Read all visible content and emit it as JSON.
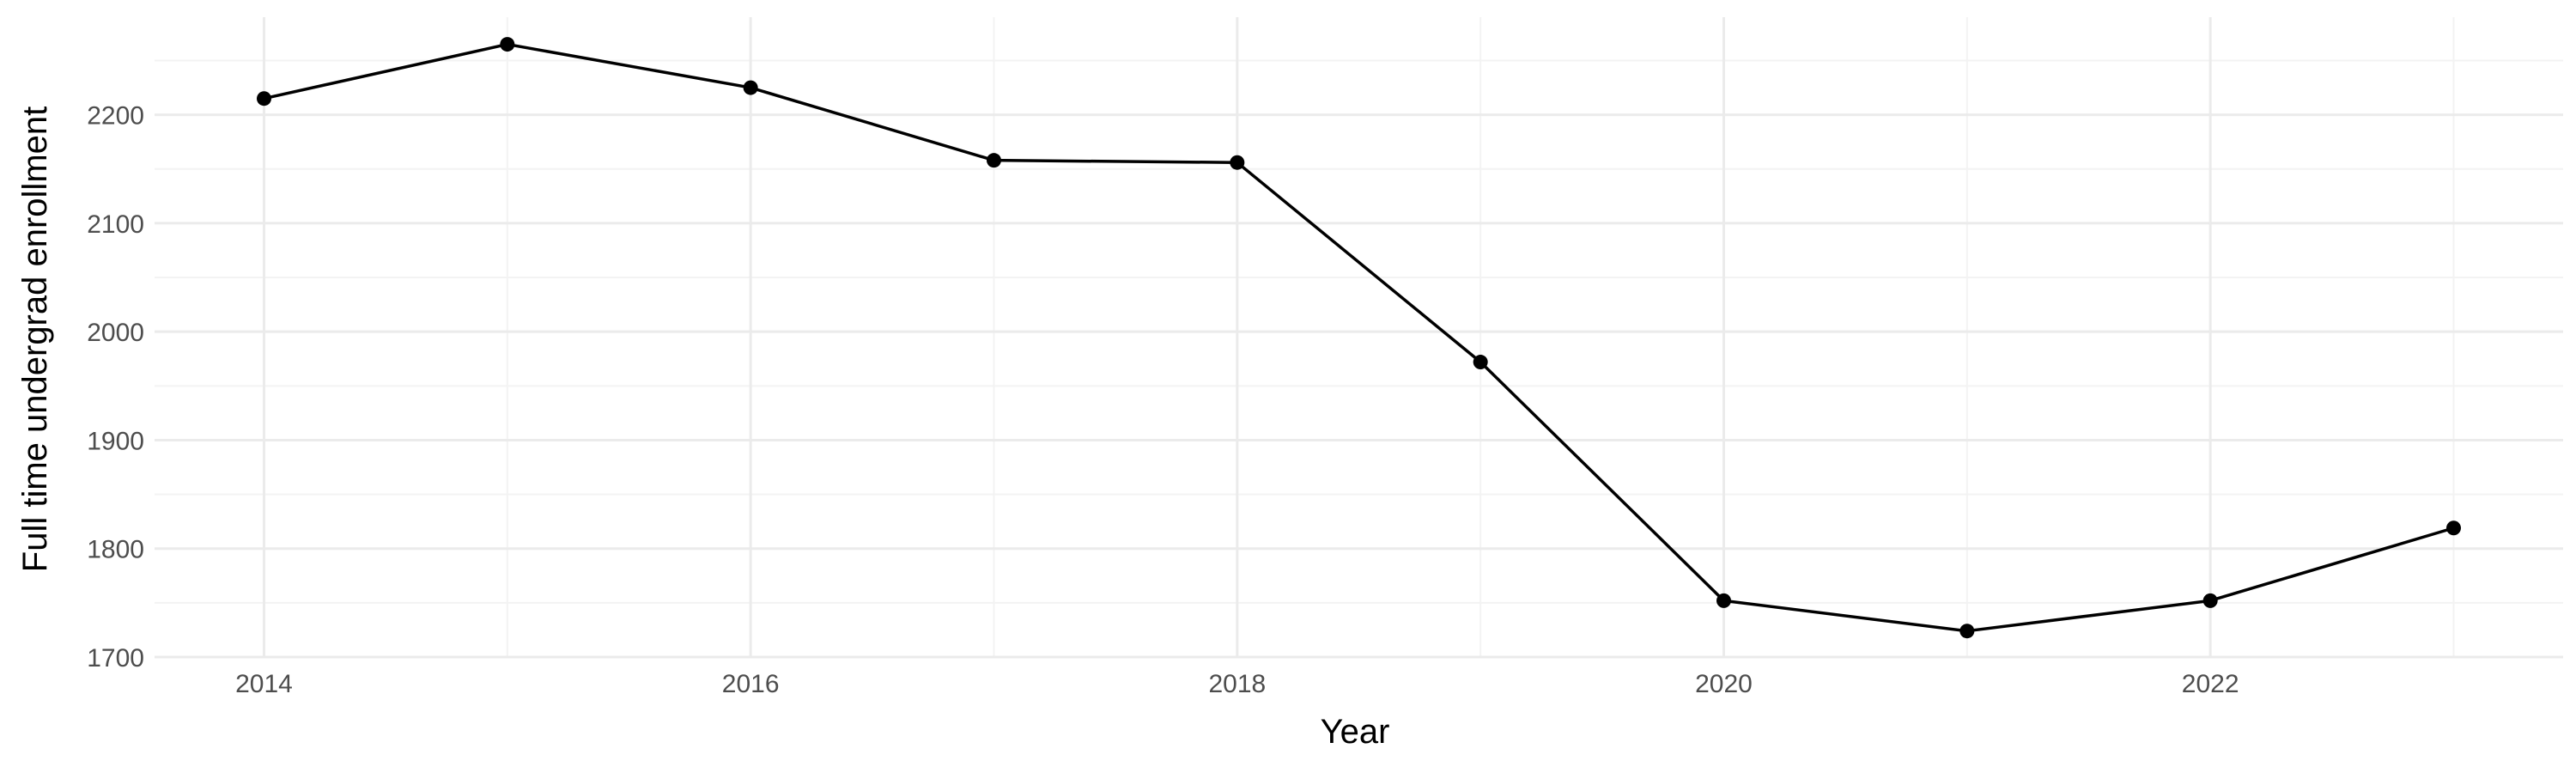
{
  "chart_data": {
    "type": "line",
    "title": "",
    "xlabel": "Year",
    "ylabel": "Full time undergrad enrollment",
    "x": [
      2014,
      2015,
      2016,
      2017,
      2018,
      2019,
      2020,
      2021,
      2022,
      2023
    ],
    "series": [
      {
        "values": [
          2215,
          2265,
          2225,
          2158,
          2156,
          1972,
          1752,
          1724,
          1752,
          1819
        ]
      }
    ],
    "xlim": [
      2013.55,
      2023.45
    ],
    "ylim": [
      1700,
      2290
    ],
    "x_ticks": [
      2014,
      2016,
      2018,
      2020,
      2022
    ],
    "x_tick_labels": [
      "2014",
      "2016",
      "2018",
      "2020",
      "2022"
    ],
    "y_ticks": [
      1700,
      1800,
      1900,
      2000,
      2100,
      2200
    ],
    "y_tick_labels": [
      "1700",
      "1800",
      "1900",
      "2000",
      "2100",
      "2200"
    ],
    "grid": true,
    "legend": "none",
    "colors": {
      "line": "#000000",
      "point": "#000000",
      "grid_major": "#ebebeb",
      "grid_minor": "#f3f3f3",
      "tick_text": "#4d4d4d",
      "axis_title": "#000000"
    }
  }
}
